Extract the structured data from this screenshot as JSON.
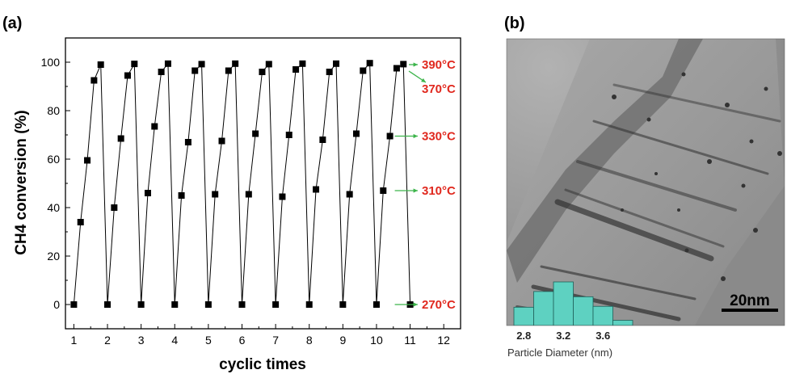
{
  "panel_a": {
    "label": "(a)"
  },
  "panel_b": {
    "label": "(b)",
    "scale_bar": "20nm",
    "histogram": {
      "tick_labels": [
        "2.8",
        "3.2",
        "3.6"
      ],
      "tick_values": [
        2.8,
        3.2,
        3.6
      ],
      "xlabel": "Particle Diameter (nm)",
      "bar_centers": [
        2.8,
        3.0,
        3.2,
        3.4,
        3.6,
        3.8
      ],
      "bar_heights": [
        0.42,
        0.78,
        1.0,
        0.66,
        0.44,
        0.12
      ],
      "color": "#5ed1c1"
    }
  },
  "chart_data": {
    "type": "line",
    "xlabel": "cyclic times",
    "ylabel": "CH4 conversion (%)",
    "xlim": [
      0.75,
      12.5
    ],
    "ylim": [
      -10,
      110
    ],
    "xticks": [
      1,
      2,
      3,
      4,
      5,
      6,
      7,
      8,
      9,
      10,
      11,
      12
    ],
    "yticks": [
      0,
      20,
      40,
      60,
      80,
      100
    ],
    "marker": "square",
    "series": [
      {
        "x": [
          1.0,
          1.2,
          1.4,
          1.6,
          1.8,
          2.0,
          2.2,
          2.4,
          2.6,
          2.8,
          3.0,
          3.2,
          3.4,
          3.6,
          3.8,
          4.0,
          4.2,
          4.4,
          4.6,
          4.8,
          5.0,
          5.2,
          5.4,
          5.6,
          5.8,
          6.0,
          6.2,
          6.4,
          6.6,
          6.8,
          7.0,
          7.2,
          7.4,
          7.6,
          7.8,
          8.0,
          8.2,
          8.4,
          8.6,
          8.8,
          9.0,
          9.2,
          9.4,
          9.6,
          9.8,
          10.0,
          10.2,
          10.4,
          10.6,
          10.8,
          11.0
        ],
        "y": [
          0,
          34,
          59.5,
          92.5,
          99,
          0,
          40,
          68.5,
          94.5,
          99.3,
          0,
          46,
          73.5,
          96,
          99.4,
          0,
          45,
          67,
          96.5,
          99.2,
          0,
          45.5,
          67.5,
          96.5,
          99.4,
          0,
          45.5,
          70.5,
          96,
          99.2,
          0,
          44.5,
          70,
          97,
          99.4,
          0,
          47.5,
          68,
          96,
          99.4,
          0,
          45.5,
          70.5,
          96.5,
          99.6,
          0,
          47,
          69.5,
          97.5,
          99.2,
          0
        ]
      }
    ],
    "annotations": [
      {
        "text": "390°C",
        "y": 99
      },
      {
        "text": "370°C",
        "y": 97
      },
      {
        "text": "330°C",
        "y": 69.5
      },
      {
        "text": "310°C",
        "y": 47
      },
      {
        "text": "270°C",
        "y": 0
      }
    ],
    "annotation_color": "#e0281e",
    "arrow_color": "#3cb44a",
    "line_color": "#000000",
    "grid": false
  }
}
